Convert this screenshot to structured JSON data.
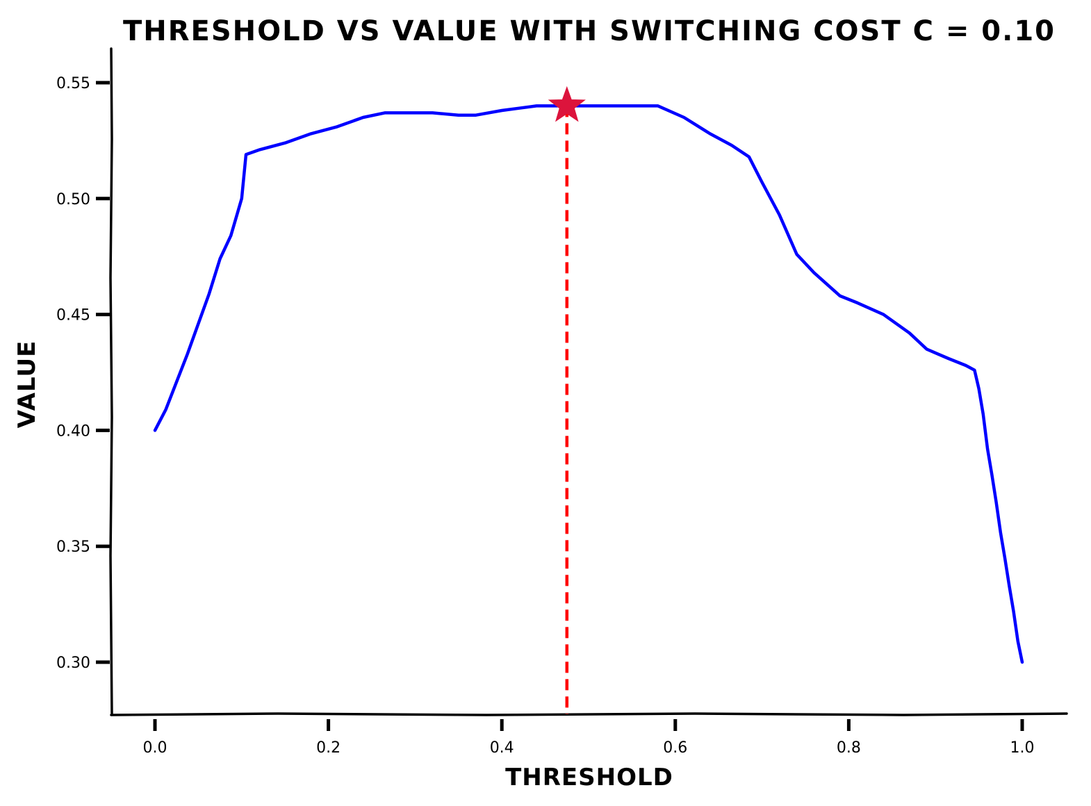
{
  "chart_data": {
    "type": "line",
    "title": "THRESHOLD VS VALUE WITH SWITCHING COST C = 0.10",
    "xlabel": "THRESHOLD",
    "ylabel": "VALUE",
    "xlim": [
      -0.05,
      1.05
    ],
    "ylim": [
      0.277,
      0.565
    ],
    "xticks": [
      0.0,
      0.2,
      0.4,
      0.6,
      0.8,
      1.0
    ],
    "xtick_labels": [
      "0.0",
      "0.2",
      "0.4",
      "0.6",
      "0.8",
      "1.0"
    ],
    "yticks": [
      0.3,
      0.35,
      0.4,
      0.45,
      0.5,
      0.55
    ],
    "ytick_labels": [
      "0.30",
      "0.35",
      "0.40",
      "0.45",
      "0.50",
      "0.55"
    ],
    "grid": false,
    "series": [
      {
        "color": "#0000ff",
        "x": [
          0.0,
          0.0125,
          0.025,
          0.0375,
          0.05,
          0.0625,
          0.075,
          0.0875,
          0.1,
          0.105,
          0.12,
          0.15,
          0.18,
          0.21,
          0.24,
          0.265,
          0.29,
          0.32,
          0.35,
          0.37,
          0.4,
          0.42,
          0.44,
          0.46,
          0.475,
          0.51,
          0.55,
          0.58,
          0.61,
          0.64,
          0.665,
          0.685,
          0.7,
          0.72,
          0.74,
          0.76,
          0.79,
          0.81,
          0.84,
          0.87,
          0.89,
          0.915,
          0.935,
          0.945,
          0.95,
          0.955,
          0.96,
          0.965,
          0.97,
          0.975,
          0.98,
          0.985,
          0.99,
          0.995,
          1.0
        ],
        "values": [
          0.4,
          0.409,
          0.421,
          0.433,
          0.446,
          0.459,
          0.474,
          0.484,
          0.5,
          0.519,
          0.521,
          0.524,
          0.528,
          0.531,
          0.535,
          0.537,
          0.537,
          0.537,
          0.536,
          0.536,
          0.538,
          0.539,
          0.54,
          0.54,
          0.54,
          0.54,
          0.54,
          0.54,
          0.535,
          0.528,
          0.523,
          0.518,
          0.507,
          0.493,
          0.476,
          0.468,
          0.458,
          0.455,
          0.45,
          0.442,
          0.435,
          0.431,
          0.428,
          0.426,
          0.418,
          0.407,
          0.392,
          0.381,
          0.369,
          0.356,
          0.345,
          0.333,
          0.322,
          0.309,
          0.3
        ]
      }
    ],
    "annotations": {
      "optimum_x": 0.475,
      "optimum_y": 0.54,
      "marker": "star",
      "marker_color": "#dc143c",
      "guide_line": "vertical dashed",
      "guide_color": "#ff0000"
    }
  }
}
